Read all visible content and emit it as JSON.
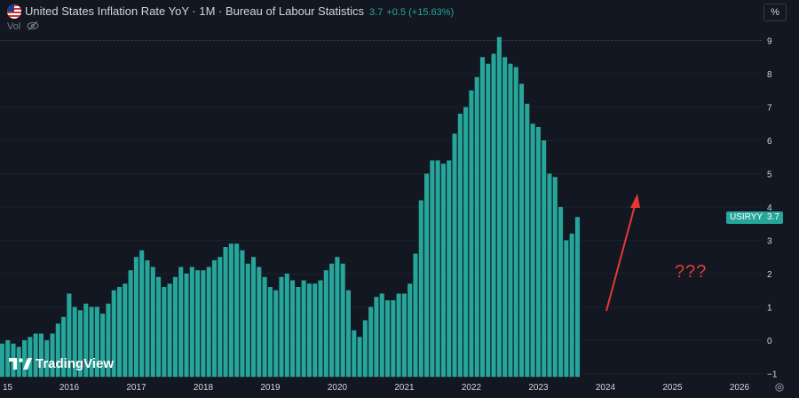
{
  "header": {
    "title": "United States Inflation Rate YoY · 1M · Bureau of Labour Statistics",
    "last_value": "3.7",
    "change": "+0.5 (+15.63%)",
    "vol_label": "Vol",
    "percent_button": "%"
  },
  "price_tag": {
    "symbol": "USIRYY",
    "value": "3.7"
  },
  "annotation": "???",
  "logo": "TradingView",
  "colors": {
    "background": "#131722",
    "bar": "#26a69a",
    "arrow": "#e53935",
    "axis_text": "#d1d4dc"
  },
  "chart_data": {
    "type": "bar",
    "x_axis_labels": [
      "15",
      "2016",
      "2017",
      "2018",
      "2019",
      "2020",
      "2021",
      "2022",
      "2023",
      "2024",
      "2025",
      "2026"
    ],
    "y_ticks": [
      -1,
      0,
      1,
      2,
      3,
      4,
      5,
      6,
      7,
      8,
      9
    ],
    "ylim": [
      -1.1,
      9.2
    ],
    "start": "2015-01",
    "values": [
      -0.1,
      0,
      -0.1,
      -0.2,
      0,
      0.1,
      0.2,
      0.2,
      0,
      0.2,
      0.5,
      0.7,
      1.4,
      1.0,
      0.9,
      1.1,
      1.0,
      1.0,
      0.8,
      1.1,
      1.5,
      1.6,
      1.7,
      2.1,
      2.5,
      2.7,
      2.4,
      2.2,
      1.9,
      1.6,
      1.7,
      1.9,
      2.2,
      2.0,
      2.2,
      2.1,
      2.1,
      2.2,
      2.4,
      2.5,
      2.8,
      2.9,
      2.9,
      2.7,
      2.3,
      2.5,
      2.2,
      1.9,
      1.6,
      1.5,
      1.9,
      2.0,
      1.8,
      1.6,
      1.8,
      1.7,
      1.7,
      1.8,
      2.1,
      2.3,
      2.5,
      2.3,
      1.5,
      0.3,
      0.1,
      0.6,
      1.0,
      1.3,
      1.4,
      1.2,
      1.2,
      1.4,
      1.4,
      1.7,
      2.6,
      4.2,
      5.0,
      5.4,
      5.4,
      5.3,
      5.4,
      6.2,
      6.8,
      7.0,
      7.5,
      7.9,
      8.5,
      8.3,
      8.6,
      9.1,
      8.5,
      8.3,
      8.2,
      7.7,
      7.1,
      6.5,
      6.4,
      6.0,
      5.0,
      4.9,
      4.0,
      3.0,
      3.2,
      3.7
    ]
  }
}
